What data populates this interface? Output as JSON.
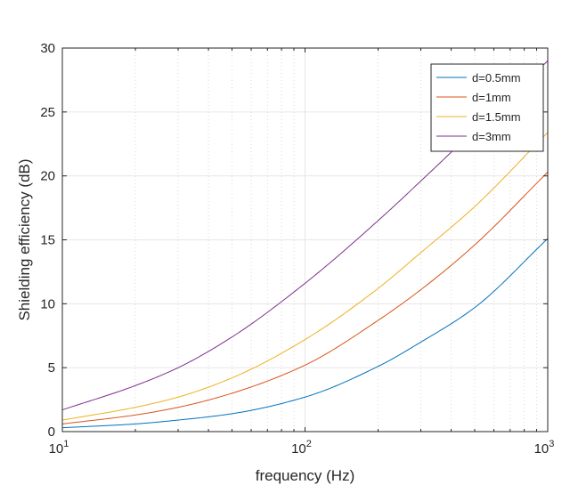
{
  "chart_data": {
    "type": "line",
    "title": "",
    "xlabel": "frequency (Hz)",
    "ylabel": "Shielding efficiency (dB)",
    "x_scale": "log",
    "xlim": [
      10,
      1000
    ],
    "ylim": [
      0,
      30
    ],
    "grid": true,
    "legend_position": "top-right",
    "x_ticks": [
      {
        "value": 10,
        "base": "10",
        "exp": "1"
      },
      {
        "value": 100,
        "base": "10",
        "exp": "2"
      },
      {
        "value": 1000,
        "base": "10",
        "exp": "3"
      }
    ],
    "y_ticks": [
      "0",
      "5",
      "10",
      "15",
      "20",
      "25",
      "30"
    ],
    "x": [
      10,
      20,
      30,
      50,
      100,
      200,
      300,
      500,
      1000
    ],
    "series": [
      {
        "name": "d=0.5mm",
        "color": "#0072BD",
        "values": [
          0.3,
          0.6,
          0.9,
          1.4,
          2.7,
          5.1,
          7.0,
          9.7,
          15.1
        ]
      },
      {
        "name": "d=1mm",
        "color": "#D95319",
        "values": [
          0.6,
          1.3,
          1.9,
          3.0,
          5.2,
          8.7,
          11.1,
          14.6,
          20.3
        ]
      },
      {
        "name": "d=1.5mm",
        "color": "#EDB120",
        "values": [
          0.9,
          1.9,
          2.7,
          4.2,
          7.2,
          11.2,
          14.0,
          17.6,
          23.4
        ]
      },
      {
        "name": "d=3mm",
        "color": "#7E2F8E",
        "values": [
          1.7,
          3.6,
          5.0,
          7.4,
          11.6,
          16.5,
          19.6,
          23.6,
          29.0
        ]
      }
    ]
  }
}
